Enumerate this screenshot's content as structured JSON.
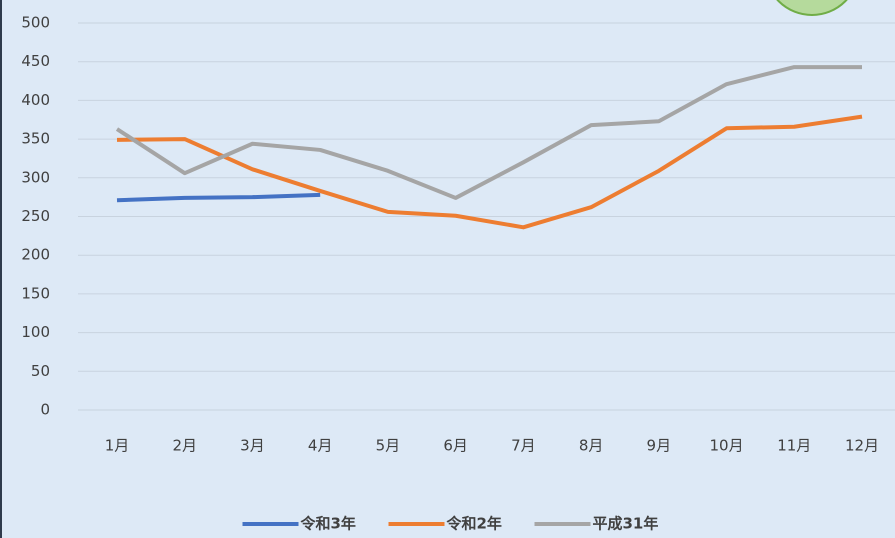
{
  "chart_data": {
    "type": "line",
    "categories": [
      "1月",
      "2月",
      "3月",
      "4月",
      "5月",
      "6月",
      "7月",
      "8月",
      "9月",
      "10月",
      "11月",
      "12月"
    ],
    "series": [
      {
        "name": "令和3年",
        "color": "#4472c4",
        "values": [
          271,
          274,
          275,
          278,
          null,
          null,
          null,
          null,
          null,
          null,
          null,
          null
        ]
      },
      {
        "name": "令和2年",
        "color": "#ed7d31",
        "values": [
          349,
          350,
          311,
          283,
          256,
          251,
          236,
          262,
          309,
          364,
          366,
          379
        ]
      },
      {
        "name": "平成31年",
        "color": "#a5a5a5",
        "values": [
          363,
          306,
          344,
          336,
          309,
          274,
          320,
          368,
          373,
          421,
          443,
          443
        ]
      }
    ],
    "ylim": [
      0,
      500
    ],
    "yticks": [
      0,
      50,
      100,
      150,
      200,
      250,
      300,
      350,
      400,
      450,
      500
    ],
    "grid": true,
    "legend": "bottom"
  }
}
